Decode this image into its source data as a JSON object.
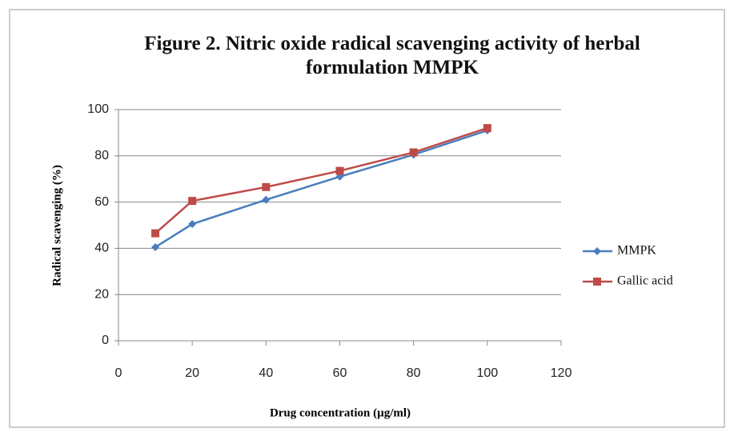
{
  "chart_data": {
    "type": "line",
    "title": "Figure 2. Nitric oxide radical scavenging activity of herbal formulation MMPK",
    "x_label": "Drug concentration (µg/ml)",
    "y_label": "Radical scavenging (%)",
    "x": [
      10,
      20,
      40,
      60,
      80,
      100
    ],
    "series": [
      {
        "name": "MMPK",
        "color": "#4a7ebb",
        "marker": "diamond",
        "values": [
          40.5,
          50.5,
          61,
          71,
          80.5,
          91
        ]
      },
      {
        "name": "Gallic acid",
        "color": "#be4b48",
        "marker": "square",
        "values": [
          46.5,
          60.5,
          66.5,
          73.5,
          81.5,
          92
        ]
      }
    ],
    "xlim": [
      0,
      120
    ],
    "xticks": [
      0,
      20,
      40,
      60,
      80,
      100,
      120
    ],
    "ylim": [
      0,
      100
    ],
    "yticks": [
      0,
      20,
      40,
      60,
      80,
      100
    ],
    "grid": true,
    "legend": "right"
  }
}
